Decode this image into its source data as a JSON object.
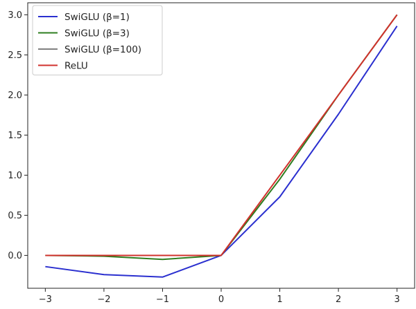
{
  "chart_data": {
    "type": "line",
    "title": "",
    "xlabel": "",
    "ylabel": "",
    "x": [
      -3,
      -2,
      -1,
      0,
      1,
      2,
      3
    ],
    "xlim": [
      -3.3,
      3.3
    ],
    "ylim": [
      -0.41,
      3.15
    ],
    "x_ticks": [
      -3,
      -2,
      -1,
      0,
      1,
      2,
      3
    ],
    "x_tick_labels": [
      "−3",
      "−2",
      "−1",
      "0",
      "1",
      "2",
      "3"
    ],
    "y_ticks": [
      0.0,
      0.5,
      1.0,
      1.5,
      2.0,
      2.5,
      3.0
    ],
    "y_tick_labels": [
      "0.0",
      "0.5",
      "1.0",
      "1.5",
      "2.0",
      "2.5",
      "3.0"
    ],
    "grid": false,
    "legend_placement": "top-left",
    "series": [
      {
        "name": "SwiGLU (β=1)",
        "color": "#2a2fcf",
        "values": [
          -0.14,
          -0.24,
          -0.27,
          0.0,
          0.73,
          1.76,
          2.86
        ]
      },
      {
        "name": "SwiGLU (β=3)",
        "color": "#2e7d1f",
        "values": [
          0.0,
          -0.01,
          -0.05,
          0.0,
          0.95,
          2.0,
          3.0
        ]
      },
      {
        "name": "SwiGLU (β=100)",
        "color": "#555555",
        "values": [
          0.0,
          0.0,
          0.0,
          0.0,
          1.0,
          2.0,
          3.0
        ]
      },
      {
        "name": "ReLU",
        "color": "#d1312c",
        "values": [
          0.0,
          0.0,
          0.0,
          0.0,
          1.0,
          2.0,
          3.0
        ]
      }
    ]
  }
}
